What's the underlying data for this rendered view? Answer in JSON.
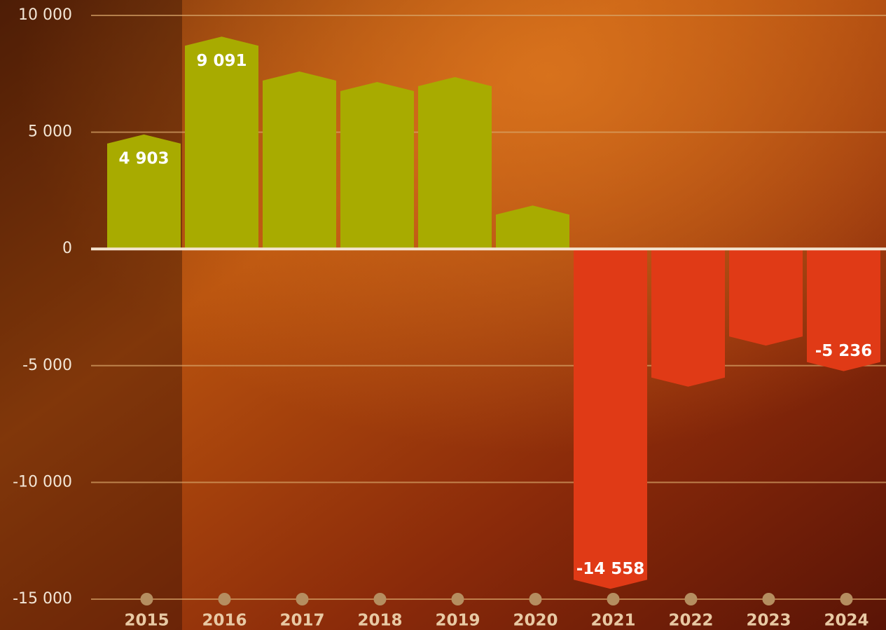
{
  "chart_data": {
    "type": "bar",
    "categories": [
      "2015",
      "2016",
      "2017",
      "2018",
      "2019",
      "2020",
      "2021",
      "2022",
      "2023",
      "2024"
    ],
    "values": [
      4903,
      9091,
      7600,
      7150,
      7360,
      1860,
      -14558,
      -5900,
      -4140,
      -5236
    ],
    "value_labels": [
      "4 903",
      "9 091",
      null,
      null,
      null,
      null,
      "-14 558",
      null,
      null,
      "-5 236"
    ],
    "positive_color": "#a8ab00",
    "negative_color": "#e03a16",
    "ylim": [
      -15000,
      10000
    ],
    "yticks": [
      {
        "value": -15000,
        "label": "-15 000"
      },
      {
        "value": -10000,
        "label": "-10 000"
      },
      {
        "value": -5000,
        "label": "-5 000"
      },
      0,
      {
        "value": 5000,
        "label": "5 000"
      },
      {
        "value": 10000,
        "label": "10 000"
      }
    ],
    "grid": true
  }
}
